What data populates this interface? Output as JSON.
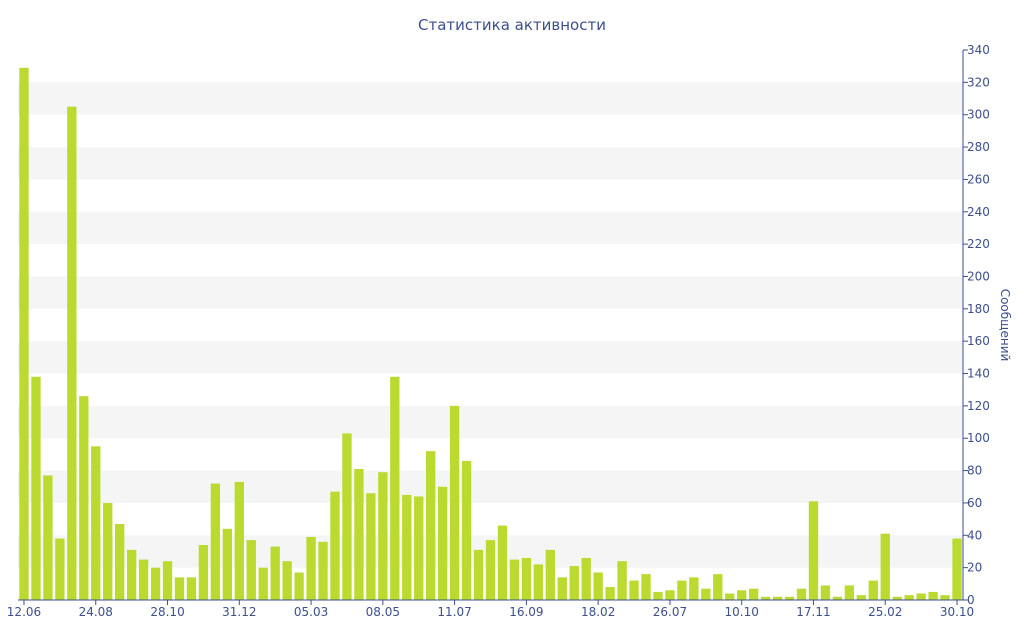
{
  "chart_data": {
    "type": "bar",
    "title": "Статистика активности",
    "ylabel": "Сообщений",
    "xlabel": "",
    "ylim": [
      0,
      340
    ],
    "y_ticks": [
      0,
      20,
      40,
      60,
      80,
      100,
      120,
      140,
      160,
      180,
      200,
      220,
      240,
      260,
      280,
      300,
      320,
      340
    ],
    "y_axis_position": "right",
    "grid": "alternating horizontal bands",
    "x_tick_labels": [
      {
        "label": "12.06",
        "index": 0
      },
      {
        "label": "24.08",
        "index": 6
      },
      {
        "label": "28.10",
        "index": 12
      },
      {
        "label": "31.12",
        "index": 18
      },
      {
        "label": "05.03",
        "index": 24
      },
      {
        "label": "08.05",
        "index": 30
      },
      {
        "label": "11.07",
        "index": 36
      },
      {
        "label": "16.09",
        "index": 42
      },
      {
        "label": "18.02",
        "index": 48
      },
      {
        "label": "26.07",
        "index": 54
      },
      {
        "label": "10.10",
        "index": 60
      },
      {
        "label": "17.11",
        "index": 66
      },
      {
        "label": "25.02",
        "index": 72
      },
      {
        "label": "30.10",
        "index": 78
      }
    ],
    "values": [
      329,
      138,
      77,
      38,
      305,
      126,
      95,
      60,
      47,
      31,
      25,
      20,
      24,
      14,
      14,
      34,
      72,
      44,
      73,
      37,
      20,
      33,
      24,
      17,
      39,
      36,
      67,
      103,
      81,
      66,
      79,
      138,
      65,
      64,
      92,
      70,
      120,
      86,
      31,
      37,
      46,
      25,
      26,
      22,
      31,
      14,
      21,
      26,
      17,
      8,
      24,
      12,
      16,
      5,
      6,
      12,
      14,
      7,
      16,
      4,
      6,
      7,
      2,
      2,
      2,
      7,
      61,
      9,
      2,
      9,
      3,
      12,
      41,
      2,
      3,
      4,
      5,
      3,
      38
    ],
    "colors": {
      "bar": "#bada2f",
      "band": "#f5f5f5",
      "axis": "#3d4f8c",
      "text": "#3d4f8c"
    }
  }
}
